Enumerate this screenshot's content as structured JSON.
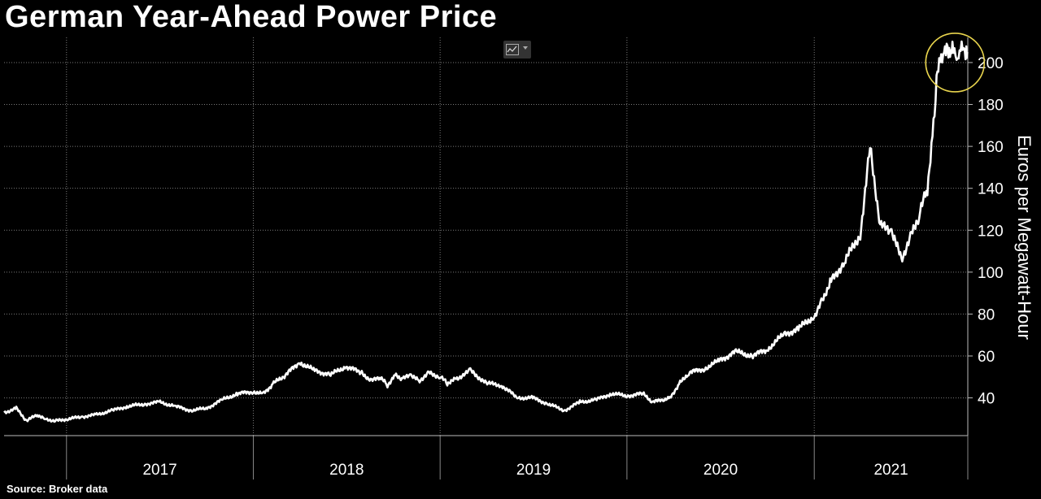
{
  "title": "German Year-Ahead Power Price",
  "source": "Source: Broker data",
  "toggle": {
    "icon": "line-chart-icon"
  },
  "colors": {
    "background": "#000000",
    "line": "#ffffff",
    "grid": "#7a7a7a",
    "highlight": "#e8d44d"
  },
  "chart_data": {
    "type": "line",
    "title": "German Year-Ahead Power Price",
    "ylabel": "Euros per Megawatt-Hour",
    "ylim": [
      22,
      212
    ],
    "yticks": [
      40,
      60,
      80,
      100,
      120,
      140,
      160,
      180,
      200
    ],
    "y_axis_position": "right",
    "xlim": [
      "2016-09-01",
      "2021-10-28"
    ],
    "x_labels": [
      "2017",
      "2018",
      "2019",
      "2020",
      "2021"
    ],
    "grid": true,
    "annotation": {
      "type": "circle",
      "x": "2021-10-03",
      "y": 200,
      "color": "#e8d44d"
    },
    "series": [
      {
        "x": [
          "2016-09-01",
          "2016-09-25",
          "2016-10-15",
          "2016-11-05",
          "2016-11-20",
          "2016-12-10",
          "2017-01-05",
          "2017-02-01",
          "2017-03-01",
          "2017-04-01",
          "2017-05-01",
          "2017-06-01",
          "2017-07-01",
          "2017-08-01",
          "2017-09-01",
          "2017-10-01",
          "2017-11-01",
          "2017-12-01",
          "2018-01-01",
          "2018-01-20",
          "2018-02-10",
          "2018-03-01",
          "2018-04-01",
          "2018-05-01",
          "2018-06-01",
          "2018-07-01",
          "2018-08-01",
          "2018-08-20",
          "2018-09-05",
          "2018-09-20",
          "2018-10-05",
          "2018-10-20",
          "2018-11-05",
          "2018-11-20",
          "2018-12-10",
          "2019-01-01",
          "2019-01-15",
          "2019-02-01",
          "2019-03-01",
          "2019-04-01",
          "2019-05-01",
          "2019-06-01",
          "2019-07-01",
          "2019-08-01",
          "2019-09-01",
          "2019-10-01",
          "2019-11-01",
          "2019-12-01",
          "2020-01-01",
          "2020-02-01",
          "2020-02-20",
          "2020-03-10",
          "2020-03-25",
          "2020-04-10",
          "2020-05-01",
          "2020-06-01",
          "2020-07-01",
          "2020-08-01",
          "2020-09-01",
          "2020-10-01",
          "2020-11-01",
          "2020-12-01",
          "2021-01-01",
          "2021-01-15",
          "2021-02-01",
          "2021-03-01",
          "2021-04-01",
          "2021-04-20",
          "2021-05-10",
          "2021-06-01",
          "2021-06-20",
          "2021-07-10",
          "2021-07-25",
          "2021-08-10",
          "2021-08-20",
          "2021-08-28",
          "2021-09-02",
          "2021-09-06",
          "2021-09-10",
          "2021-09-15",
          "2021-09-20",
          "2021-09-25",
          "2021-09-28",
          "2021-10-02",
          "2021-10-06",
          "2021-10-10",
          "2021-10-14",
          "2021-10-18",
          "2021-10-22",
          "2021-10-25",
          "2021-10-27"
        ],
        "y": [
          33,
          35,
          29,
          32,
          30,
          29,
          30,
          31,
          32,
          34,
          36,
          37,
          38,
          36,
          34,
          35,
          39,
          42,
          43,
          42,
          47,
          50,
          57,
          53,
          51,
          55,
          52,
          48,
          50,
          46,
          51,
          49,
          51,
          48,
          52,
          50,
          47,
          49,
          53,
          47,
          46,
          40,
          40,
          37,
          34,
          38,
          39,
          42,
          41,
          42,
          38,
          39,
          40,
          46,
          52,
          54,
          58,
          62,
          60,
          63,
          70,
          73,
          79,
          86,
          95,
          105,
          118,
          160,
          122,
          120,
          106,
          118,
          127,
          140,
          165,
          190,
          200,
          205,
          205,
          205,
          205,
          205,
          205,
          205,
          205,
          205,
          205,
          205,
          205,
          205,
          205
        ]
      }
    ]
  }
}
